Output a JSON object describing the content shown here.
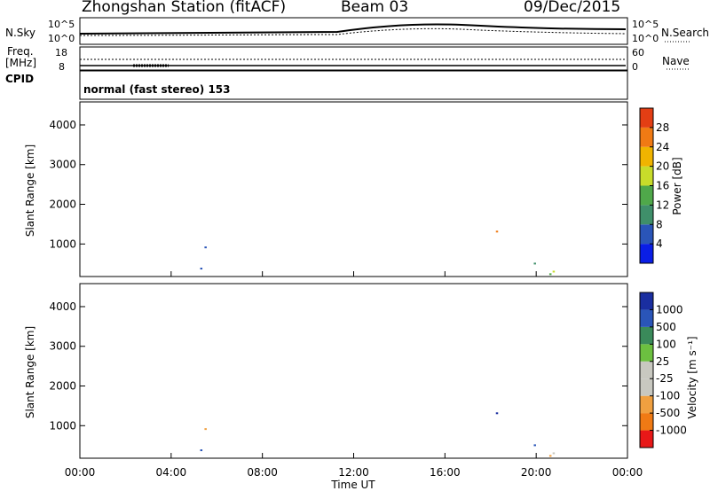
{
  "header": {
    "station": "Zhongshan Station (fitACF)",
    "beam": "Beam 03",
    "date": "09/Dec/2015"
  },
  "noise_panel": {
    "left_label": "N.Sky",
    "right_label": "N.Search",
    "left_ticks": [
      "10^5",
      "10^0"
    ],
    "right_ticks": [
      "10^5",
      "10^0"
    ]
  },
  "freq_panel": {
    "left_label_line1": "Freq.",
    "left_label_line2": "[MHz]",
    "right_label": "Nave",
    "left_ticks": [
      "18",
      "8"
    ],
    "right_ticks": [
      "60",
      "0"
    ]
  },
  "cpid_panel": {
    "label": "CPID",
    "text": "normal (fast stereo) 153"
  },
  "colors": {
    "power_scale": [
      "#0a1ee6",
      "#2a55b8",
      "#3f8f6a",
      "#4fa84a",
      "#c8dc2a",
      "#f0b400",
      "#f07a14",
      "#e33e14",
      "#d20000"
    ],
    "velocity_scale": [
      "#e81818",
      "#f07a14",
      "#f0a040",
      "#c8c8c0",
      "#c8c8c0",
      "#6cc040",
      "#3a8a5a",
      "#2a55b8",
      "#1a2ea0"
    ]
  },
  "chart_data": [
    {
      "type": "heatmap",
      "name": "power",
      "ylabel": "Slant Range [km]",
      "xlabel": "",
      "xlim": [
        "00:00",
        "24:00"
      ],
      "ylim": [
        180,
        4580
      ],
      "y_ticks": [
        "1000",
        "2000",
        "3000",
        "4000"
      ],
      "colorbar_label": "Power [dB]",
      "colorbar_ticks": [
        "4",
        "8",
        "12",
        "16",
        "20",
        "24",
        "28"
      ],
      "colorbar_range": [
        0,
        30
      ]
    },
    {
      "type": "heatmap",
      "name": "velocity",
      "ylabel": "Slant Range [km]",
      "xlabel": "Time UT",
      "xlim": [
        "00:00",
        "24:00"
      ],
      "x_ticks": [
        "00:00",
        "04:00",
        "08:00",
        "12:00",
        "16:00",
        "20:00",
        "00:00"
      ],
      "ylim": [
        180,
        4580
      ],
      "y_ticks": [
        "1000",
        "2000",
        "3000",
        "4000"
      ],
      "colorbar_label": "Velocity [m s⁻¹]",
      "colorbar_ticks": [
        "1000",
        "500",
        "100",
        "25",
        "-25",
        "-100",
        "-500",
        "-1000"
      ],
      "colorbar_range": [
        -1000,
        1000
      ]
    }
  ]
}
